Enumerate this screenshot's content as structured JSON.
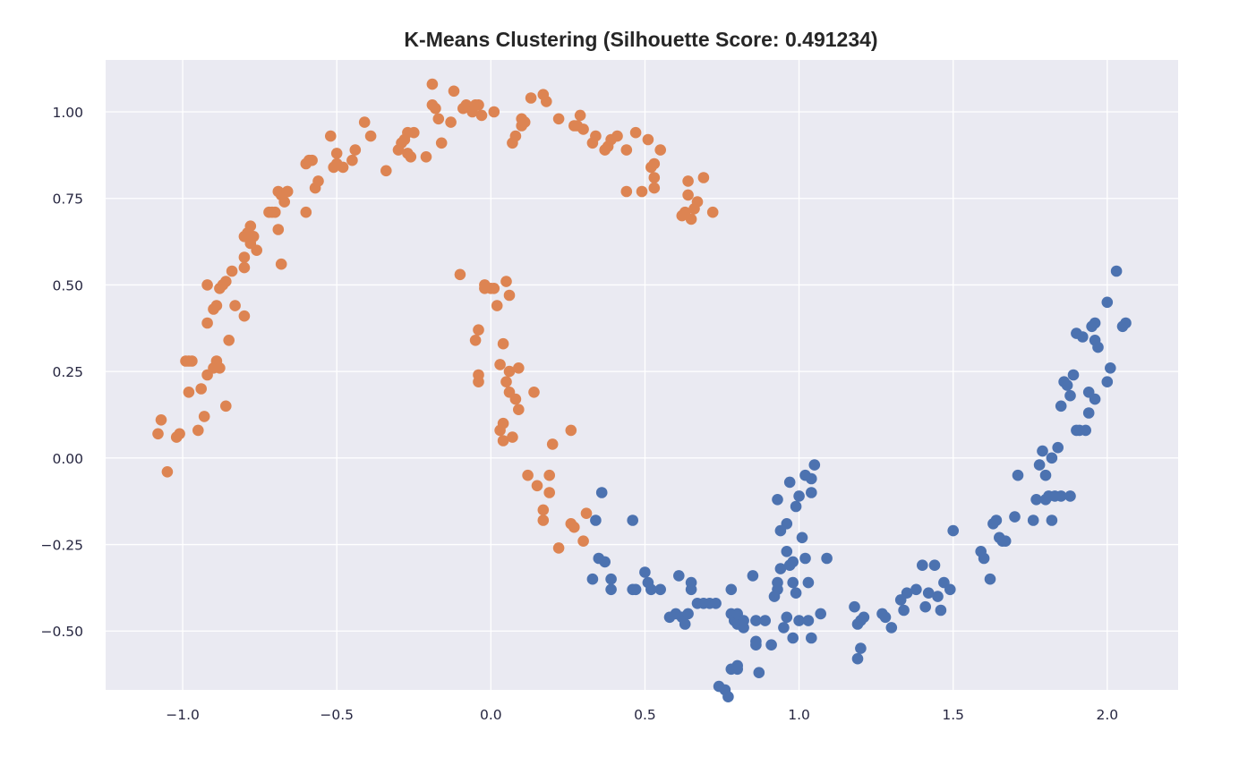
{
  "chart_data": {
    "type": "scatter",
    "title": "K-Means Clustering (Silhouette Score: 0.491234)",
    "xlabel": "",
    "ylabel": "",
    "xlim": [
      -1.25,
      2.23
    ],
    "ylim": [
      -0.67,
      1.15
    ],
    "xticks": [
      -1.0,
      -0.5,
      0.0,
      0.5,
      1.0,
      1.5,
      2.0
    ],
    "xtick_labels": [
      "−1.0",
      "−0.5",
      "0.0",
      "0.5",
      "1.0",
      "1.5",
      "2.0"
    ],
    "yticks": [
      -0.5,
      -0.25,
      0.0,
      0.25,
      0.5,
      0.75,
      1.0
    ],
    "ytick_labels": [
      "−0.50",
      "−0.25",
      "0.00",
      "0.25",
      "0.50",
      "0.75",
      "1.00"
    ],
    "grid": true,
    "legend": "none",
    "background_color": "#eaeaf2",
    "series": [
      {
        "color": "#dd8452",
        "points": [
          [
            -1.08,
            0.07
          ],
          [
            -1.07,
            0.11
          ],
          [
            -1.05,
            -0.04
          ],
          [
            -1.02,
            0.06
          ],
          [
            -1.01,
            0.07
          ],
          [
            -0.99,
            0.28
          ],
          [
            -0.98,
            0.19
          ],
          [
            -0.98,
            0.28
          ],
          [
            -0.97,
            0.28
          ],
          [
            -0.95,
            0.08
          ],
          [
            -0.94,
            0.2
          ],
          [
            -0.93,
            0.12
          ],
          [
            -0.92,
            0.24
          ],
          [
            -0.92,
            0.39
          ],
          [
            -0.92,
            0.5
          ],
          [
            -0.9,
            0.26
          ],
          [
            -0.9,
            0.43
          ],
          [
            -0.89,
            0.28
          ],
          [
            -0.89,
            0.44
          ],
          [
            -0.88,
            0.26
          ],
          [
            -0.88,
            0.49
          ],
          [
            -0.87,
            0.5
          ],
          [
            -0.86,
            0.51
          ],
          [
            -0.86,
            0.15
          ],
          [
            -0.85,
            0.34
          ],
          [
            -0.84,
            0.54
          ],
          [
            -0.83,
            0.44
          ],
          [
            -0.8,
            0.41
          ],
          [
            -0.8,
            0.55
          ],
          [
            -0.8,
            0.58
          ],
          [
            -0.8,
            0.64
          ],
          [
            -0.79,
            0.65
          ],
          [
            -0.78,
            0.67
          ],
          [
            -0.78,
            0.62
          ],
          [
            -0.77,
            0.64
          ],
          [
            -0.76,
            0.6
          ],
          [
            -0.72,
            0.71
          ],
          [
            -0.71,
            0.71
          ],
          [
            -0.7,
            0.71
          ],
          [
            -0.69,
            0.77
          ],
          [
            -0.69,
            0.66
          ],
          [
            -0.68,
            0.56
          ],
          [
            -0.68,
            0.76
          ],
          [
            -0.67,
            0.74
          ],
          [
            -0.66,
            0.77
          ],
          [
            -0.66,
            0.77
          ],
          [
            -0.6,
            0.71
          ],
          [
            -0.6,
            0.85
          ],
          [
            -0.59,
            0.86
          ],
          [
            -0.58,
            0.86
          ],
          [
            -0.57,
            0.78
          ],
          [
            -0.56,
            0.8
          ],
          [
            -0.52,
            0.93
          ],
          [
            -0.51,
            0.84
          ],
          [
            -0.5,
            0.85
          ],
          [
            -0.5,
            0.88
          ],
          [
            -0.48,
            0.84
          ],
          [
            -0.45,
            0.86
          ],
          [
            -0.44,
            0.89
          ],
          [
            -0.41,
            0.97
          ],
          [
            -0.39,
            0.93
          ],
          [
            -0.34,
            0.83
          ],
          [
            -0.3,
            0.89
          ],
          [
            -0.29,
            0.91
          ],
          [
            -0.28,
            0.92
          ],
          [
            -0.27,
            0.94
          ],
          [
            -0.27,
            0.88
          ],
          [
            -0.26,
            0.87
          ],
          [
            -0.25,
            0.94
          ],
          [
            -0.21,
            0.87
          ],
          [
            -0.19,
            1.08
          ],
          [
            -0.19,
            1.02
          ],
          [
            -0.18,
            1.01
          ],
          [
            -0.17,
            0.98
          ],
          [
            -0.16,
            0.91
          ],
          [
            -0.13,
            0.97
          ],
          [
            -0.12,
            1.06
          ],
          [
            -0.1,
            0.53
          ],
          [
            -0.09,
            1.01
          ],
          [
            -0.08,
            1.02
          ],
          [
            -0.06,
            1.0
          ],
          [
            -0.05,
            1.02
          ],
          [
            -0.04,
            1.02
          ],
          [
            -0.03,
            0.99
          ],
          [
            -0.05,
            0.34
          ],
          [
            -0.04,
            0.37
          ],
          [
            -0.04,
            0.22
          ],
          [
            -0.04,
            0.24
          ],
          [
            -0.02,
            0.5
          ],
          [
            -0.02,
            0.49
          ],
          [
            0.0,
            0.49
          ],
          [
            0.01,
            1.0
          ],
          [
            0.01,
            0.49
          ],
          [
            0.02,
            0.44
          ],
          [
            0.03,
            0.27
          ],
          [
            0.03,
            0.08
          ],
          [
            0.04,
            0.1
          ],
          [
            0.04,
            0.33
          ],
          [
            0.04,
            0.05
          ],
          [
            0.05,
            0.51
          ],
          [
            0.05,
            0.22
          ],
          [
            0.06,
            0.19
          ],
          [
            0.06,
            0.25
          ],
          [
            0.06,
            0.47
          ],
          [
            0.07,
            0.91
          ],
          [
            0.07,
            0.06
          ],
          [
            0.08,
            0.17
          ],
          [
            0.08,
            0.93
          ],
          [
            0.09,
            0.26
          ],
          [
            0.09,
            0.14
          ],
          [
            0.1,
            0.98
          ],
          [
            0.1,
            0.96
          ],
          [
            0.11,
            0.97
          ],
          [
            0.12,
            -0.05
          ],
          [
            0.13,
            1.04
          ],
          [
            0.14,
            0.19
          ],
          [
            0.15,
            -0.08
          ],
          [
            0.17,
            1.05
          ],
          [
            0.17,
            -0.18
          ],
          [
            0.17,
            -0.15
          ],
          [
            0.18,
            1.03
          ],
          [
            0.19,
            -0.1
          ],
          [
            0.19,
            -0.05
          ],
          [
            0.2,
            0.04
          ],
          [
            0.22,
            -0.26
          ],
          [
            0.22,
            0.98
          ],
          [
            0.26,
            0.08
          ],
          [
            0.26,
            -0.19
          ],
          [
            0.27,
            -0.2
          ],
          [
            0.27,
            0.96
          ],
          [
            0.28,
            0.96
          ],
          [
            0.29,
            0.99
          ],
          [
            0.3,
            -0.24
          ],
          [
            0.3,
            0.95
          ],
          [
            0.31,
            -0.16
          ],
          [
            0.33,
            0.91
          ],
          [
            0.34,
            0.93
          ],
          [
            0.37,
            0.89
          ],
          [
            0.38,
            0.9
          ],
          [
            0.39,
            0.92
          ],
          [
            0.41,
            0.93
          ],
          [
            0.44,
            0.89
          ],
          [
            0.44,
            0.77
          ],
          [
            0.47,
            0.94
          ],
          [
            0.49,
            0.77
          ],
          [
            0.51,
            0.92
          ],
          [
            0.52,
            0.84
          ],
          [
            0.53,
            0.81
          ],
          [
            0.53,
            0.78
          ],
          [
            0.53,
            0.85
          ],
          [
            0.55,
            0.89
          ],
          [
            0.62,
            0.7
          ],
          [
            0.63,
            0.71
          ],
          [
            0.64,
            0.8
          ],
          [
            0.64,
            0.76
          ],
          [
            0.65,
            0.69
          ],
          [
            0.66,
            0.72
          ],
          [
            0.67,
            0.74
          ],
          [
            0.69,
            0.81
          ],
          [
            0.72,
            0.71
          ]
        ]
      },
      {
        "color": "#4c72b0",
        "points": [
          [
            0.33,
            -0.35
          ],
          [
            0.34,
            -0.18
          ],
          [
            0.35,
            -0.29
          ],
          [
            0.36,
            -0.1
          ],
          [
            0.37,
            -0.3
          ],
          [
            0.39,
            -0.38
          ],
          [
            0.39,
            -0.35
          ],
          [
            0.46,
            -0.38
          ],
          [
            0.47,
            -0.38
          ],
          [
            0.46,
            -0.18
          ],
          [
            0.5,
            -0.33
          ],
          [
            0.51,
            -0.36
          ],
          [
            0.52,
            -0.38
          ],
          [
            0.55,
            -0.38
          ],
          [
            0.58,
            -0.46
          ],
          [
            0.6,
            -0.45
          ],
          [
            0.61,
            -0.34
          ],
          [
            0.62,
            -0.46
          ],
          [
            0.63,
            -0.48
          ],
          [
            0.64,
            -0.45
          ],
          [
            0.65,
            -0.38
          ],
          [
            0.65,
            -0.36
          ],
          [
            0.67,
            -0.42
          ],
          [
            0.69,
            -0.42
          ],
          [
            0.71,
            -0.42
          ],
          [
            0.73,
            -0.42
          ],
          [
            0.74,
            -0.66
          ],
          [
            0.76,
            -0.67
          ],
          [
            0.77,
            -0.69
          ],
          [
            0.78,
            -0.61
          ],
          [
            0.78,
            -0.38
          ],
          [
            0.78,
            -0.45
          ],
          [
            0.79,
            -0.47
          ],
          [
            0.8,
            -0.48
          ],
          [
            0.8,
            -0.61
          ],
          [
            0.8,
            -0.6
          ],
          [
            0.8,
            -0.45
          ],
          [
            0.82,
            -0.49
          ],
          [
            0.82,
            -0.47
          ],
          [
            0.85,
            -0.34
          ],
          [
            0.86,
            -0.53
          ],
          [
            0.86,
            -0.54
          ],
          [
            0.86,
            -0.47
          ],
          [
            0.87,
            -0.62
          ],
          [
            0.89,
            -0.47
          ],
          [
            0.91,
            -0.54
          ],
          [
            0.92,
            -0.4
          ],
          [
            0.93,
            -0.36
          ],
          [
            0.93,
            -0.38
          ],
          [
            0.93,
            -0.12
          ],
          [
            0.94,
            -0.21
          ],
          [
            0.94,
            -0.32
          ],
          [
            0.95,
            -0.49
          ],
          [
            0.96,
            -0.27
          ],
          [
            0.96,
            -0.19
          ],
          [
            0.96,
            -0.46
          ],
          [
            0.97,
            -0.31
          ],
          [
            0.97,
            -0.07
          ],
          [
            0.98,
            -0.36
          ],
          [
            0.98,
            -0.52
          ],
          [
            0.98,
            -0.3
          ],
          [
            0.99,
            -0.39
          ],
          [
            0.99,
            -0.14
          ],
          [
            1.0,
            -0.11
          ],
          [
            1.0,
            -0.47
          ],
          [
            1.01,
            -0.23
          ],
          [
            1.02,
            -0.29
          ],
          [
            1.02,
            -0.05
          ],
          [
            1.03,
            -0.36
          ],
          [
            1.03,
            -0.47
          ],
          [
            1.04,
            -0.52
          ],
          [
            1.04,
            -0.1
          ],
          [
            1.04,
            -0.06
          ],
          [
            1.05,
            -0.02
          ],
          [
            1.07,
            -0.45
          ],
          [
            1.09,
            -0.29
          ],
          [
            1.18,
            -0.43
          ],
          [
            1.19,
            -0.48
          ],
          [
            1.19,
            -0.58
          ],
          [
            1.2,
            -0.55
          ],
          [
            1.2,
            -0.47
          ],
          [
            1.21,
            -0.46
          ],
          [
            1.27,
            -0.45
          ],
          [
            1.28,
            -0.46
          ],
          [
            1.3,
            -0.49
          ],
          [
            1.33,
            -0.41
          ],
          [
            1.34,
            -0.44
          ],
          [
            1.35,
            -0.39
          ],
          [
            1.38,
            -0.38
          ],
          [
            1.4,
            -0.31
          ],
          [
            1.41,
            -0.43
          ],
          [
            1.42,
            -0.39
          ],
          [
            1.44,
            -0.31
          ],
          [
            1.45,
            -0.4
          ],
          [
            1.46,
            -0.44
          ],
          [
            1.47,
            -0.36
          ],
          [
            1.49,
            -0.38
          ],
          [
            1.5,
            -0.21
          ],
          [
            1.59,
            -0.27
          ],
          [
            1.6,
            -0.29
          ],
          [
            1.62,
            -0.35
          ],
          [
            1.63,
            -0.19
          ],
          [
            1.64,
            -0.18
          ],
          [
            1.65,
            -0.23
          ],
          [
            1.66,
            -0.24
          ],
          [
            1.67,
            -0.24
          ],
          [
            1.7,
            -0.17
          ],
          [
            1.71,
            -0.05
          ],
          [
            1.76,
            -0.18
          ],
          [
            1.77,
            -0.12
          ],
          [
            1.78,
            -0.02
          ],
          [
            1.79,
            0.02
          ],
          [
            1.8,
            -0.12
          ],
          [
            1.8,
            -0.05
          ],
          [
            1.81,
            -0.11
          ],
          [
            1.82,
            -0.18
          ],
          [
            1.82,
            0.0
          ],
          [
            1.83,
            -0.11
          ],
          [
            1.84,
            0.03
          ],
          [
            1.85,
            -0.11
          ],
          [
            1.85,
            0.15
          ],
          [
            1.86,
            0.22
          ],
          [
            1.87,
            0.21
          ],
          [
            1.88,
            -0.11
          ],
          [
            1.88,
            0.18
          ],
          [
            1.89,
            0.24
          ],
          [
            1.9,
            0.08
          ],
          [
            1.9,
            0.36
          ],
          [
            1.91,
            0.08
          ],
          [
            1.92,
            0.35
          ],
          [
            1.93,
            0.08
          ],
          [
            1.94,
            0.19
          ],
          [
            1.94,
            0.13
          ],
          [
            1.95,
            0.38
          ],
          [
            1.96,
            0.17
          ],
          [
            1.96,
            0.34
          ],
          [
            1.96,
            0.39
          ],
          [
            1.97,
            0.32
          ],
          [
            2.0,
            0.22
          ],
          [
            2.0,
            0.45
          ],
          [
            2.01,
            0.26
          ],
          [
            2.03,
            0.54
          ],
          [
            2.05,
            0.38
          ],
          [
            2.06,
            0.39
          ]
        ]
      }
    ]
  }
}
